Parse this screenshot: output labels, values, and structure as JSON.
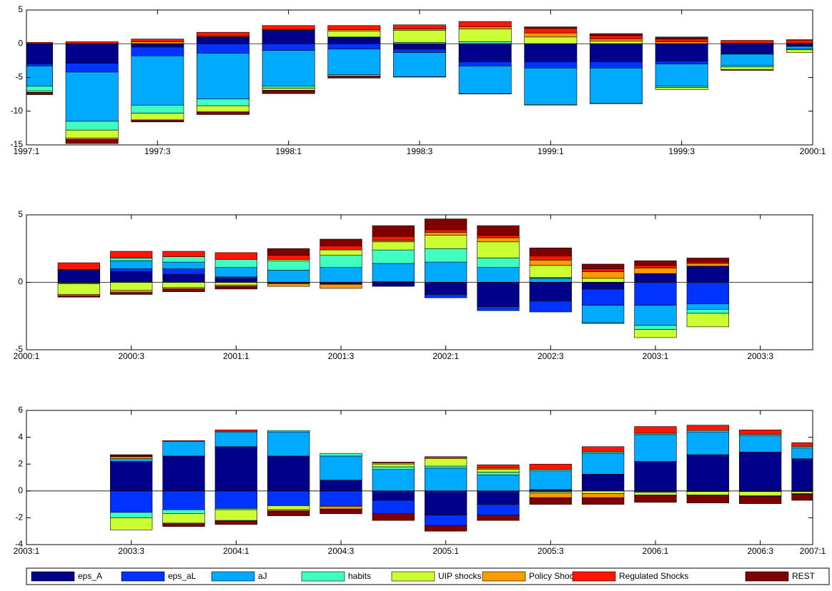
{
  "chart_data": [
    {
      "type": "bar",
      "stacked": true,
      "categories": [
        "1997:1",
        null,
        "1997:3",
        null,
        "1998:1",
        null,
        "1998:3",
        null,
        "1999:1",
        null,
        "1999:3",
        null,
        "2000:1"
      ],
      "ylim": [
        -15,
        5
      ],
      "yticks": [
        -15,
        -10,
        -5,
        0,
        5
      ],
      "series": [
        {
          "name": "eps_A",
          "color": "#00008b",
          "values": [
            -3,
            -2.9,
            -0.5,
            1.0,
            2.0,
            1.0,
            -0.8,
            -2.7,
            -2.7,
            -2.7,
            -2.6,
            -1.5,
            -0.3
          ]
        },
        {
          "name": "eps_aL",
          "color": "#0033ff",
          "values": [
            -0.3,
            -1.3,
            -1.3,
            -1.4,
            -1.0,
            -0.8,
            -0.5,
            -0.6,
            -0.9,
            -0.9,
            -0.4,
            -0.05,
            -0.1
          ]
        },
        {
          "name": "aJ",
          "color": "#00aaff",
          "values": [
            -3.0,
            -7.3,
            -7.3,
            -6.8,
            -5.3,
            -3.8,
            -3.6,
            -4.1,
            -5.4,
            -5.2,
            -3.3,
            -1.7,
            -0.4
          ]
        },
        {
          "name": "habits",
          "color": "#40ffc0",
          "values": [
            -0.7,
            -1.3,
            -1.2,
            -1.0,
            -0.3,
            -0.2,
            0.2,
            0.3,
            -0.1,
            -0.1,
            -0.2,
            -0.2,
            -0.1
          ]
        },
        {
          "name": "UIP shocks",
          "color": "#ccff33",
          "values": [
            -0.2,
            -1.2,
            -1.0,
            -0.9,
            -0.3,
            0.9,
            1.8,
            1.9,
            1.0,
            0.4,
            -0.3,
            -0.4,
            -0.4
          ]
        },
        {
          "name": "Policy Shocks",
          "color": "#ff9900",
          "values": [
            -0.05,
            -0.2,
            0.3,
            0.1,
            0.1,
            0.2,
            0.2,
            0.3,
            0.6,
            0.3,
            0.3,
            0.1,
            0.05
          ]
        },
        {
          "name": "Regulated Shocks",
          "color": "#ff1500",
          "values": [
            0.2,
            0.3,
            0.4,
            0.6,
            0.6,
            0.6,
            0.6,
            0.8,
            0.7,
            0.5,
            0.4,
            0.4,
            0.5
          ]
        },
        {
          "name": "REST",
          "color": "#800000",
          "values": [
            -0.3,
            -0.6,
            -0.3,
            -0.4,
            -0.5,
            -0.3,
            -0.05,
            -0.05,
            0.2,
            0.3,
            0.3,
            -0.1,
            0.05
          ]
        }
      ]
    },
    {
      "type": "bar",
      "stacked": true,
      "categories": [
        "2000:1",
        null,
        "2000:3",
        null,
        "2001:1",
        null,
        "2001:3",
        null,
        "2002:1",
        null,
        "2002:3",
        null,
        "2003:1",
        null,
        "2003:3",
        null
      ],
      "ylim": [
        -5,
        5
      ],
      "yticks": [
        -5,
        0,
        5
      ],
      "series": [
        {
          "name": "eps_A",
          "color": "#00008b",
          "values": [
            null,
            0.9,
            0.8,
            0.6,
            0.3,
            -0.05,
            -0.1,
            -0.3,
            -0.9,
            -1.8,
            -1.4,
            -0.5,
            0.65,
            1.2,
            null,
            null
          ]
        },
        {
          "name": "eps_aL",
          "color": "#0033ff",
          "values": [
            null,
            -0.05,
            0.2,
            0.4,
            0.1,
            -0.05,
            -0.05,
            0.05,
            -0.25,
            -0.3,
            -0.8,
            -1.2,
            -1.7,
            -1.6,
            null,
            null
          ]
        },
        {
          "name": "aJ",
          "color": "#00aaff",
          "values": [
            null,
            0.05,
            0.6,
            0.5,
            0.7,
            0.9,
            1.1,
            1.35,
            1.5,
            1.1,
            0.3,
            -1.3,
            -1.5,
            -0.4,
            null,
            null
          ]
        },
        {
          "name": "habits",
          "color": "#40ffc0",
          "values": [
            null,
            -0.05,
            0.2,
            0.4,
            0.6,
            0.7,
            0.9,
            1.0,
            1.0,
            0.7,
            0.05,
            -0.05,
            -0.3,
            -0.3,
            null,
            null
          ]
        },
        {
          "name": "UIP shocks",
          "color": "#ccff33",
          "values": [
            null,
            -0.8,
            -0.6,
            -0.4,
            -0.2,
            0.1,
            0.4,
            0.6,
            1.0,
            1.2,
            0.9,
            0.3,
            -0.6,
            -1.0,
            null,
            null
          ]
        },
        {
          "name": "Policy Shocks",
          "color": "#ff9900",
          "values": [
            null,
            -0.1,
            -0.15,
            -0.1,
            -0.1,
            -0.2,
            -0.3,
            0.1,
            0.2,
            0.3,
            0.4,
            0.5,
            0.4,
            0.2,
            null,
            null
          ]
        },
        {
          "name": "Regulated Shocks",
          "color": "#ff1500",
          "values": [
            null,
            0.5,
            0.5,
            0.4,
            0.5,
            0.3,
            0.3,
            0.3,
            0.2,
            0.2,
            0.3,
            0.2,
            0.2,
            0.1,
            null,
            null
          ]
        },
        {
          "name": "REST",
          "color": "#800000",
          "values": [
            null,
            -0.1,
            -0.15,
            -0.2,
            -0.2,
            0.5,
            0.5,
            0.8,
            0.8,
            0.7,
            0.6,
            0.35,
            0.35,
            0.3,
            null,
            null
          ]
        }
      ]
    },
    {
      "type": "bar",
      "stacked": true,
      "legend": "bottom",
      "categories": [
        "2003:1",
        null,
        "2003:3",
        null,
        "2004:1",
        null,
        "2004:3",
        null,
        "2005:1",
        null,
        "2005:3",
        null,
        "2006:1",
        null,
        "2006:3",
        "2007:1"
      ],
      "ylim": [
        -4,
        6
      ],
      "yticks": [
        -4,
        -2,
        0,
        2,
        4,
        6
      ],
      "series": [
        {
          "name": "eps_A",
          "color": "#00008b",
          "values": [
            null,
            null,
            2.2,
            2.6,
            3.3,
            2.6,
            0.8,
            -0.7,
            -1.8,
            -1.0,
            0.1,
            1.2,
            2.2,
            2.7,
            2.9,
            2.4
          ]
        },
        {
          "name": "eps_aL",
          "color": "#0033ff",
          "values": [
            null,
            null,
            -1.6,
            -1.4,
            -1.3,
            -1.1,
            -1.1,
            -1.0,
            -0.8,
            -0.8,
            -0.05,
            0.05,
            -0.1,
            -0.05,
            -0.05,
            -0.05
          ]
        },
        {
          "name": "aJ",
          "color": "#00aaff",
          "values": [
            null,
            null,
            0.2,
            1.1,
            1.1,
            1.8,
            1.8,
            1.6,
            1.7,
            1.2,
            1.4,
            1.55,
            2.0,
            1.7,
            1.2,
            0.8
          ]
        },
        {
          "name": "habits",
          "color": "#40ffc0",
          "values": [
            null,
            null,
            -0.4,
            -0.3,
            -0.1,
            0.1,
            0.2,
            0.2,
            0.15,
            0.2,
            0.1,
            0.1,
            0.1,
            0.1,
            0.1,
            0.1
          ]
        },
        {
          "name": "UIP shocks",
          "color": "#ccff33",
          "values": [
            null,
            null,
            -0.9,
            -0.7,
            -0.8,
            -0.3,
            -0.05,
            0.2,
            0.55,
            0.2,
            -0.1,
            -0.2,
            -0.2,
            -0.25,
            -0.3,
            -0.15
          ]
        },
        {
          "name": "Policy Shocks",
          "color": "#ff9900",
          "values": [
            null,
            null,
            0.15,
            -0.05,
            -0.05,
            -0.1,
            -0.2,
            0.1,
            0.1,
            0.1,
            -0.35,
            -0.3,
            -0.05,
            -0.05,
            -0.05,
            -0.05
          ]
        },
        {
          "name": "Regulated Shocks",
          "color": "#ff1500",
          "values": [
            null,
            null,
            0.05,
            0.05,
            0.15,
            -0.05,
            -0.05,
            0.05,
            0.05,
            0.25,
            0.4,
            0.4,
            0.5,
            0.4,
            0.35,
            0.3
          ]
        },
        {
          "name": "REST",
          "color": "#800000",
          "values": [
            null,
            null,
            0.1,
            -0.2,
            -0.25,
            -0.3,
            -0.3,
            -0.5,
            -0.4,
            -0.4,
            -0.5,
            -0.5,
            -0.5,
            -0.55,
            -0.55,
            -0.45
          ]
        }
      ]
    }
  ]
}
